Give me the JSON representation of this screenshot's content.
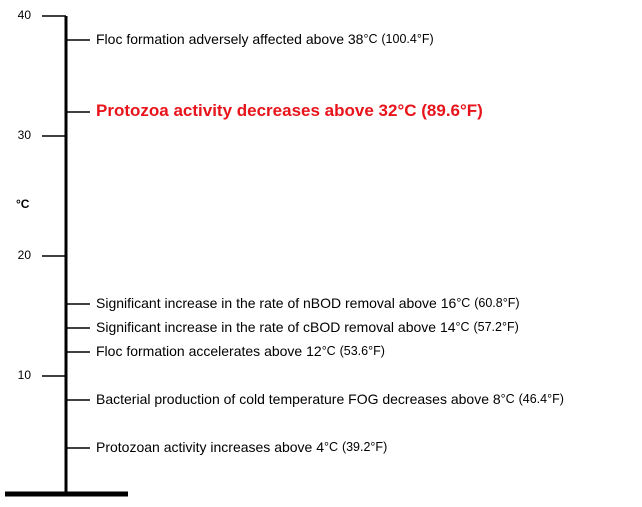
{
  "chart_data": {
    "type": "scale",
    "y_label": "°C",
    "ylim": [
      0,
      40
    ],
    "yticks": [
      10,
      20,
      30,
      40
    ],
    "color": "#000000",
    "highlight_color": "#e8141b",
    "annotations": [
      {
        "text": "Floc formation adversely affected above 38",
        "unit": "°C",
        "fahrenheit": "(100.4°F)",
        "value": 38
      },
      {
        "text": "Protozoa activity decreases above 32",
        "unit": "°C",
        "fahrenheit": "(89.6°F)",
        "value": 32,
        "highlight": true
      },
      {
        "text": "Significant increase in the rate of nBOD removal above 16",
        "unit": "°C",
        "fahrenheit": "(60.8°F)",
        "value": 16
      },
      {
        "text": "Significant increase in the rate of cBOD removal above 14",
        "unit": "°C",
        "fahrenheit": "(57.2°F)",
        "value": 14
      },
      {
        "text": "Floc formation accelerates above 12",
        "unit": "°C",
        "fahrenheit": "(53.6°F)",
        "value": 12
      },
      {
        "text": "Bacterial production of cold temperature FOG decreases above 8",
        "unit": "°C",
        "fahrenheit": "(46.4°F)",
        "value": 8
      },
      {
        "text": "Protozoan activity increases above 4",
        "unit": "°C",
        "fahrenheit": "(39.2°F)",
        "value": 4
      }
    ]
  }
}
